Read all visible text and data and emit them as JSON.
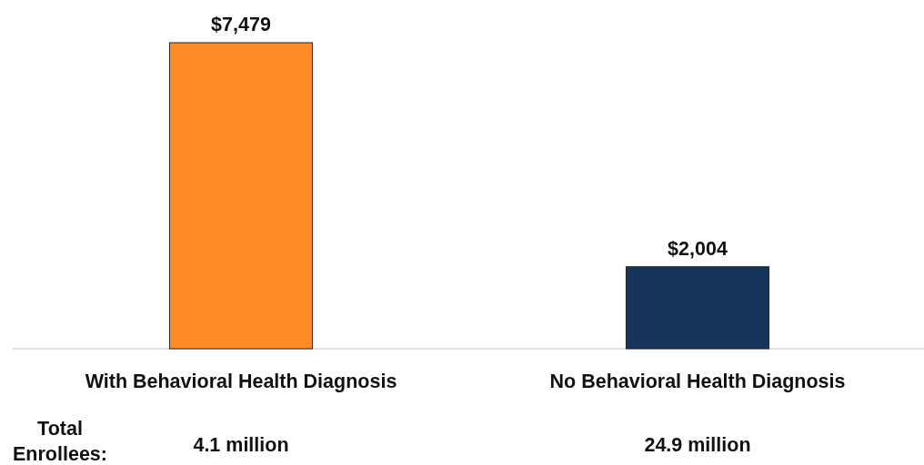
{
  "chart_data": {
    "type": "bar",
    "categories": [
      "With Behavioral Health Diagnosis",
      "No Behavioral Health Diagnosis"
    ],
    "values": [
      7479,
      2004
    ],
    "colors": [
      "#fd8b28",
      "#17355a"
    ],
    "value_labels": [
      "$7,479",
      "$2,004"
    ],
    "annotations": [
      "Total Enrollees:",
      "4.1 million",
      "24.9 million"
    ]
  }
}
